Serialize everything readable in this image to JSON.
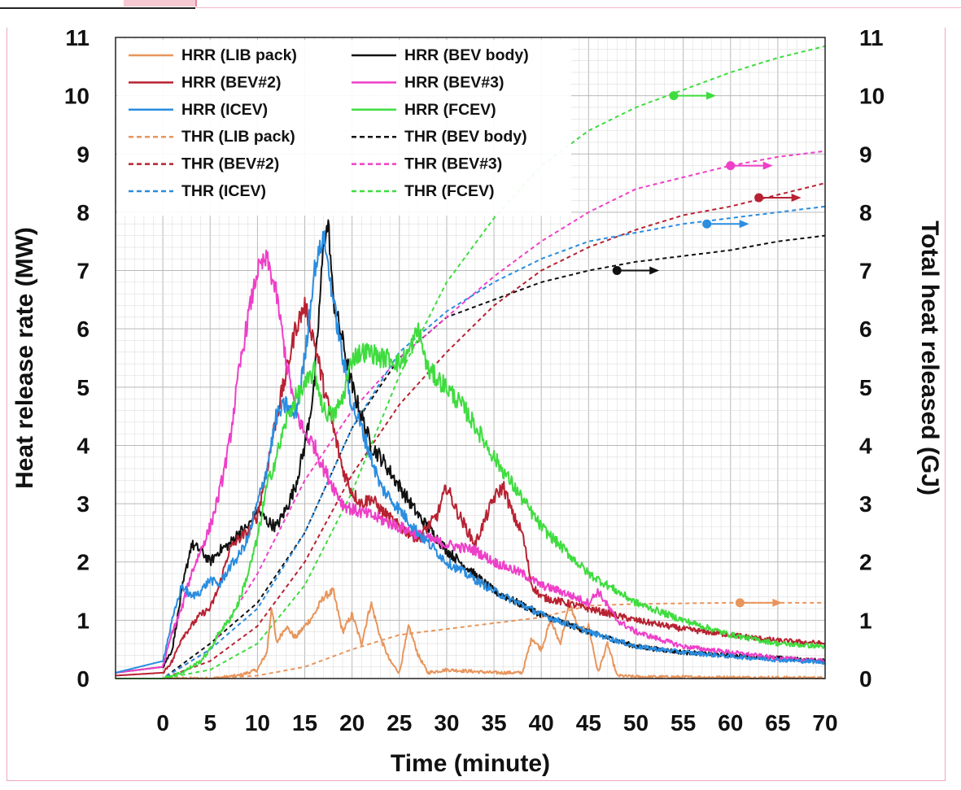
{
  "chart_data": {
    "type": "line",
    "xlabel": "Time (minute)",
    "ylabel": "Heat release rate (MW)",
    "y2label": "Total heat released (GJ)",
    "xlim": [
      -5,
      70
    ],
    "ylim": [
      0,
      11
    ],
    "y2lim": [
      0,
      11
    ],
    "x_ticks": [
      0,
      5,
      10,
      15,
      20,
      25,
      30,
      35,
      40,
      45,
      50,
      55,
      60,
      65,
      70
    ],
    "y_ticks": [
      0,
      1,
      2,
      3,
      4,
      5,
      6,
      7,
      8,
      9,
      10,
      11
    ],
    "grid": true,
    "legend_position": "top-left",
    "series": [
      {
        "name": "HRR (LIB pack)",
        "axis": "left",
        "style": "solid",
        "color": "#e8955c",
        "x": [
          -5,
          5,
          8,
          10,
          11,
          11.5,
          12,
          13,
          14,
          16,
          17,
          18,
          19,
          20,
          21,
          22,
          23,
          24,
          25,
          26,
          27,
          28,
          30,
          35,
          38,
          39,
          40,
          41,
          42,
          43,
          44,
          45,
          46,
          47,
          48,
          50,
          60,
          70
        ],
        "values": [
          0,
          0,
          0.05,
          0.15,
          0.45,
          1.25,
          0.6,
          0.9,
          0.7,
          1.1,
          1.4,
          1.5,
          0.8,
          1.1,
          0.6,
          1.3,
          0.7,
          0.3,
          0.1,
          0.9,
          0.4,
          0.1,
          0.15,
          0.1,
          0.1,
          0.7,
          0.5,
          1.0,
          0.6,
          1.3,
          0.8,
          0.9,
          0.1,
          0.6,
          0.05,
          0.03,
          0.02,
          0.01
        ]
      },
      {
        "name": "HRR (BEV body)",
        "axis": "left",
        "style": "solid",
        "color": "#111111",
        "x": [
          -5,
          0,
          1,
          2,
          3,
          4,
          5,
          6,
          7,
          8,
          9,
          10,
          11,
          12,
          13,
          14,
          15,
          16,
          17,
          17.5,
          18,
          19,
          20,
          21,
          22,
          23,
          25,
          27,
          30,
          35,
          40,
          45,
          50,
          55,
          60,
          65,
          70
        ],
        "values": [
          0.1,
          0.2,
          0.5,
          1.5,
          2.3,
          2.2,
          2.0,
          2.2,
          2.3,
          2.5,
          2.6,
          2.9,
          2.7,
          2.6,
          2.9,
          3.3,
          4.0,
          5.0,
          7.5,
          7.8,
          6.5,
          5.8,
          5.0,
          4.5,
          4.0,
          3.8,
          3.3,
          2.8,
          2.2,
          1.5,
          1.1,
          0.8,
          0.55,
          0.45,
          0.4,
          0.35,
          0.3
        ]
      },
      {
        "name": "HRR (BEV#2)",
        "axis": "left",
        "style": "solid",
        "color": "#b82232",
        "x": [
          -5,
          0,
          1,
          2,
          3,
          4,
          5,
          6,
          7,
          8,
          9,
          10,
          11,
          12,
          13,
          14,
          15,
          16,
          17,
          18,
          19,
          20,
          21,
          22,
          23,
          25,
          27,
          29,
          30,
          31,
          33,
          35,
          36,
          37,
          38,
          39,
          40,
          45,
          50,
          55,
          60,
          65,
          70
        ],
        "values": [
          0.05,
          0.1,
          0.3,
          0.7,
          0.9,
          1.1,
          1.2,
          1.6,
          2.2,
          2.4,
          2.5,
          2.8,
          3.6,
          4.5,
          5.2,
          6.0,
          6.4,
          5.8,
          5.0,
          4.3,
          3.6,
          3.2,
          3.0,
          3.1,
          2.9,
          2.6,
          2.4,
          2.8,
          3.3,
          2.9,
          2.3,
          3.1,
          3.3,
          2.8,
          2.5,
          1.6,
          1.4,
          1.2,
          1.0,
          0.85,
          0.75,
          0.65,
          0.6
        ]
      },
      {
        "name": "HRR (BEV#3)",
        "axis": "left",
        "style": "solid",
        "color": "#ee3fc8",
        "x": [
          -5,
          0,
          1,
          2,
          3,
          4,
          5,
          6,
          7,
          8,
          9,
          10,
          11,
          12,
          13,
          14,
          15,
          16,
          17,
          18,
          19,
          20,
          22,
          25,
          28,
          30,
          33,
          35,
          38,
          40,
          42,
          45,
          46,
          48,
          50,
          55,
          60,
          65,
          70
        ],
        "values": [
          0.1,
          0.2,
          0.8,
          1.2,
          1.8,
          2.2,
          2.6,
          3.2,
          4.0,
          5.2,
          6.2,
          7.0,
          7.2,
          6.6,
          5.5,
          4.6,
          4.2,
          4.0,
          3.6,
          3.3,
          3.0,
          2.9,
          2.8,
          2.6,
          2.4,
          2.3,
          2.2,
          2.0,
          1.8,
          1.6,
          1.5,
          1.3,
          1.5,
          1.0,
          0.8,
          0.55,
          0.45,
          0.35,
          0.3
        ]
      },
      {
        "name": "HRR (ICEV)",
        "axis": "left",
        "style": "solid",
        "color": "#2a8de0",
        "x": [
          -5,
          0,
          1,
          2,
          3,
          4,
          5,
          6,
          7,
          8,
          9,
          10,
          11,
          12,
          13,
          14,
          15,
          16,
          17,
          18,
          19,
          20,
          21,
          22,
          23,
          25,
          27,
          30,
          35,
          40,
          45,
          50,
          55,
          60,
          65,
          70
        ],
        "values": [
          0.1,
          0.3,
          1.0,
          1.6,
          1.4,
          1.5,
          1.7,
          1.6,
          1.9,
          2.1,
          2.4,
          3.0,
          3.6,
          4.5,
          4.7,
          4.5,
          5.5,
          7.0,
          7.6,
          6.5,
          5.5,
          4.7,
          4.3,
          3.8,
          3.3,
          2.9,
          2.5,
          2.0,
          1.5,
          1.1,
          0.8,
          0.55,
          0.45,
          0.38,
          0.32,
          0.28
        ]
      },
      {
        "name": "HRR (FCEV)",
        "axis": "left",
        "style": "solid",
        "color": "#3fdc3f",
        "x": [
          -5,
          0,
          2,
          4,
          5,
          6,
          7,
          8,
          9,
          10,
          11,
          12,
          13,
          14,
          15,
          16,
          17,
          18,
          19,
          20,
          21,
          22,
          23,
          24,
          25,
          26,
          27,
          28,
          30,
          32,
          35,
          40,
          45,
          50,
          55,
          60,
          65,
          70
        ],
        "values": [
          0,
          0,
          0.1,
          0.3,
          0.5,
          0.8,
          1.0,
          1.3,
          1.8,
          2.4,
          3.3,
          3.8,
          4.4,
          4.8,
          5.0,
          5.3,
          4.6,
          4.5,
          4.8,
          5.5,
          5.6,
          5.6,
          5.5,
          5.5,
          5.4,
          5.6,
          6.0,
          5.3,
          5.0,
          4.6,
          3.8,
          2.6,
          1.8,
          1.3,
          1.0,
          0.75,
          0.6,
          0.55
        ]
      },
      {
        "name": "THR (LIB pack)",
        "axis": "right",
        "style": "dashed",
        "color": "#e8955c",
        "x": [
          -5,
          5,
          10,
          15,
          20,
          25,
          30,
          35,
          40,
          45,
          50,
          55,
          60,
          65,
          70
        ],
        "values": [
          0,
          0,
          0.05,
          0.2,
          0.5,
          0.75,
          0.85,
          0.95,
          1.05,
          1.25,
          1.28,
          1.29,
          1.3,
          1.3,
          1.3
        ]
      },
      {
        "name": "THR (BEV body)",
        "axis": "right",
        "style": "dashed",
        "color": "#111111",
        "x": [
          -5,
          0,
          5,
          10,
          15,
          20,
          25,
          30,
          35,
          40,
          45,
          50,
          55,
          60,
          65,
          70
        ],
        "values": [
          0,
          0,
          0.6,
          1.3,
          2.5,
          4.3,
          5.5,
          6.2,
          6.5,
          6.8,
          7.0,
          7.15,
          7.25,
          7.35,
          7.5,
          7.6
        ]
      },
      {
        "name": "THR (BEV#2)",
        "axis": "right",
        "style": "dashed",
        "color": "#b82232",
        "x": [
          -5,
          0,
          5,
          10,
          15,
          20,
          25,
          30,
          35,
          40,
          45,
          50,
          55,
          60,
          65,
          70
        ],
        "values": [
          0,
          0,
          0.3,
          0.9,
          2.0,
          3.5,
          4.7,
          5.6,
          6.4,
          7.0,
          7.4,
          7.7,
          7.95,
          8.1,
          8.3,
          8.5
        ]
      },
      {
        "name": "THR (BEV#3)",
        "axis": "right",
        "style": "dashed",
        "color": "#ee3fc8",
        "x": [
          -5,
          0,
          5,
          10,
          15,
          20,
          25,
          30,
          35,
          40,
          45,
          50,
          55,
          60,
          65,
          70
        ],
        "values": [
          0,
          0,
          0.5,
          1.8,
          3.4,
          4.6,
          5.5,
          6.2,
          6.9,
          7.5,
          8.0,
          8.4,
          8.6,
          8.8,
          8.95,
          9.05
        ]
      },
      {
        "name": "THR (ICEV)",
        "axis": "right",
        "style": "dashed",
        "color": "#2a8de0",
        "x": [
          -5,
          0,
          5,
          10,
          15,
          20,
          25,
          30,
          35,
          40,
          45,
          50,
          55,
          60,
          65,
          70
        ],
        "values": [
          0,
          0,
          0.5,
          1.2,
          2.5,
          4.3,
          5.6,
          6.3,
          6.8,
          7.2,
          7.5,
          7.65,
          7.8,
          7.9,
          8.0,
          8.1
        ]
      },
      {
        "name": "THR (FCEV)",
        "axis": "right",
        "style": "dashed",
        "color": "#3fdc3f",
        "x": [
          -5,
          0,
          5,
          10,
          15,
          20,
          25,
          30,
          35,
          40,
          45,
          50,
          55,
          60,
          65,
          70
        ],
        "values": [
          0,
          0,
          0.15,
          0.6,
          1.6,
          3.2,
          5.2,
          6.8,
          7.9,
          8.8,
          9.4,
          9.8,
          10.1,
          10.4,
          10.65,
          10.85
        ]
      }
    ],
    "markers": [
      {
        "series": "THR (FCEV)",
        "x": 54,
        "y": 10.0,
        "direction": "right"
      },
      {
        "series": "THR (BEV#3)",
        "x": 60,
        "y": 8.8,
        "direction": "right"
      },
      {
        "series": "THR (BEV#2)",
        "x": 63,
        "y": 8.25,
        "direction": "right"
      },
      {
        "series": "THR (ICEV)",
        "x": 57.5,
        "y": 7.8,
        "direction": "right"
      },
      {
        "series": "THR (BEV body)",
        "x": 48,
        "y": 7.0,
        "direction": "right"
      },
      {
        "series": "THR (LIB pack)",
        "x": 61,
        "y": 1.3,
        "direction": "right"
      }
    ]
  }
}
